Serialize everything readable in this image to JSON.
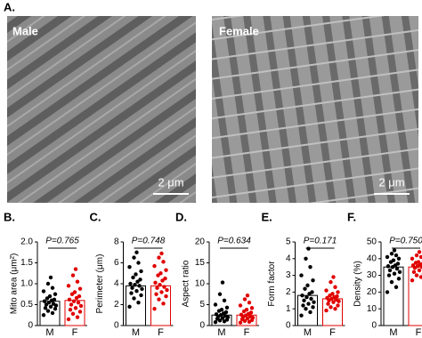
{
  "figure": {
    "label": "A.",
    "images": [
      {
        "label": "Male",
        "scale_bar": "2 μm"
      },
      {
        "label": "Female",
        "scale_bar": "2 μm"
      }
    ]
  },
  "chart_data": [
    {
      "type": "bar",
      "panel": "B.",
      "ylabel": "Mito area (μm²)",
      "annotation": "P=0.765",
      "categories": [
        "M",
        "F"
      ],
      "colors": [
        "#000000",
        "#e00000"
      ],
      "values": [
        0.58,
        0.6
      ],
      "points": [
        [
          0.25,
          0.3,
          0.35,
          0.4,
          0.42,
          0.45,
          0.48,
          0.5,
          0.52,
          0.55,
          0.58,
          0.6,
          0.62,
          0.65,
          0.7,
          0.75,
          0.82,
          0.9,
          1.0,
          1.15
        ],
        [
          0.15,
          0.2,
          0.28,
          0.33,
          0.38,
          0.42,
          0.47,
          0.5,
          0.55,
          0.58,
          0.62,
          0.66,
          0.7,
          0.75,
          0.8,
          0.88,
          0.95,
          1.05,
          1.2,
          1.35
        ]
      ],
      "ylim": [
        0,
        2
      ],
      "yticks": [
        0,
        0.5,
        {
          "value": 1,
          "label": "1.0"
        },
        1.5,
        {
          "value": 2,
          "label": "2.0"
        }
      ]
    },
    {
      "type": "bar",
      "panel": "C.",
      "ylabel": "Perimeter (μm)",
      "annotation": "P=0.748",
      "categories": [
        "M",
        "F"
      ],
      "colors": [
        "#000000",
        "#e00000"
      ],
      "values": [
        3.8,
        3.8
      ],
      "points": [
        [
          1.8,
          2.2,
          2.6,
          2.9,
          3.1,
          3.3,
          3.5,
          3.6,
          3.8,
          3.9,
          4.0,
          4.2,
          4.4,
          4.6,
          4.9,
          5.2,
          5.6,
          6.0,
          6.5,
          7.0
        ],
        [
          1.6,
          2.1,
          2.5,
          2.8,
          3.0,
          3.2,
          3.4,
          3.6,
          3.7,
          3.9,
          4.1,
          4.3,
          4.5,
          4.8,
          5.0,
          5.3,
          5.7,
          6.1,
          6.5,
          6.9
        ]
      ],
      "ylim": [
        0,
        8
      ],
      "yticks": [
        0,
        2,
        4,
        6,
        8
      ]
    },
    {
      "type": "bar",
      "panel": "D.",
      "ylabel": "Aspect ratio",
      "annotation": "P=0.634",
      "categories": [
        "M",
        "F"
      ],
      "colors": [
        "#000000",
        "#e00000"
      ],
      "values": [
        2.5,
        2.5
      ],
      "points": [
        [
          0.8,
          1.0,
          1.2,
          1.4,
          1.6,
          1.8,
          2.0,
          2.1,
          2.3,
          2.5,
          2.7,
          2.9,
          3.2,
          3.5,
          3.8,
          4.3,
          5.0,
          6.0,
          7.5,
          10.3
        ],
        [
          0.7,
          0.9,
          1.1,
          1.3,
          1.5,
          1.7,
          1.9,
          2.0,
          2.2,
          2.4,
          2.6,
          2.8,
          3.1,
          3.4,
          3.8,
          4.2,
          4.8,
          5.5,
          6.3,
          7.2
        ]
      ],
      "ylim": [
        0,
        20
      ],
      "yticks": [
        0,
        5,
        10,
        15,
        20
      ]
    },
    {
      "type": "bar",
      "panel": "E.",
      "ylabel": "Form factor",
      "annotation": "P=0.171",
      "categories": [
        "M",
        "F"
      ],
      "colors": [
        "#000000",
        "#e00000"
      ],
      "values": [
        1.8,
        1.6
      ],
      "points": [
        [
          0.6,
          0.8,
          1.0,
          1.1,
          1.2,
          1.3,
          1.4,
          1.5,
          1.6,
          1.7,
          1.8,
          1.9,
          2.0,
          2.2,
          2.4,
          2.7,
          3.0,
          3.5,
          4.0,
          4.6
        ],
        [
          0.9,
          1.0,
          1.1,
          1.2,
          1.3,
          1.4,
          1.45,
          1.5,
          1.55,
          1.6,
          1.65,
          1.7,
          1.75,
          1.8,
          1.9,
          2.0,
          2.1,
          2.3,
          2.6,
          2.9
        ]
      ],
      "ylim": [
        0,
        5
      ],
      "yticks": [
        0,
        1,
        2,
        3,
        4,
        5
      ]
    },
    {
      "type": "bar",
      "panel": "F.",
      "ylabel": "Density (%)",
      "annotation": "P=0.750",
      "categories": [
        "M",
        "F"
      ],
      "colors": [
        "#000000",
        "#e00000"
      ],
      "values": [
        35,
        35
      ],
      "points": [
        [
          20,
          23,
          26,
          28,
          30,
          31,
          32,
          33,
          34,
          35,
          35.5,
          36,
          37,
          38,
          39,
          40,
          41,
          42,
          43,
          45
        ],
        [
          27,
          29,
          30,
          31,
          32,
          33,
          34,
          34.5,
          35,
          35.5,
          36,
          36.5,
          37,
          37.5,
          38,
          39,
          40,
          41,
          42,
          44
        ]
      ],
      "ylim": [
        0,
        50
      ],
      "yticks": [
        0,
        10,
        20,
        30,
        40,
        50
      ]
    }
  ]
}
